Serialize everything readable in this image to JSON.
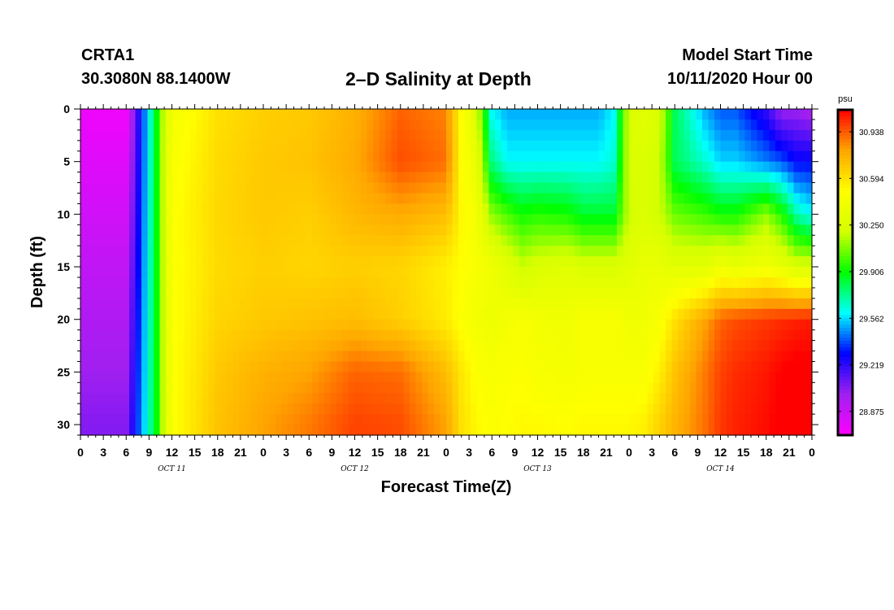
{
  "header": {
    "station": "CRTA1",
    "coords": "30.3080N 88.1400W",
    "title": "2–D Salinity at Depth",
    "model_start_label": "Model Start Time",
    "model_start_value": "10/11/2020 Hour 00"
  },
  "chart_data": {
    "type": "heatmap",
    "title": "2–D Salinity at Depth",
    "xlabel": "Forecast Time(Z)",
    "ylabel": "Depth (ft)",
    "xlim_hours": [
      0,
      96
    ],
    "ylim": [
      0,
      31
    ],
    "y_inverted": true,
    "x_ticks": [
      "0",
      "3",
      "6",
      "9",
      "12",
      "15",
      "18",
      "21",
      "0",
      "3",
      "6",
      "9",
      "12",
      "15",
      "18",
      "21",
      "0",
      "3",
      "6",
      "9",
      "12",
      "15",
      "18",
      "21",
      "0",
      "3",
      "6",
      "9",
      "12",
      "15",
      "18",
      "21",
      "0"
    ],
    "date_labels": [
      {
        "label": "OCT 11",
        "hour": 12
      },
      {
        "label": "OCT 12",
        "hour": 36
      },
      {
        "label": "OCT 13",
        "hour": 60
      },
      {
        "label": "OCT 14",
        "hour": 84
      }
    ],
    "y_ticks": [
      0,
      5,
      10,
      15,
      20,
      25,
      30
    ],
    "colorbar": {
      "unit": "psu",
      "ticks": [
        30.938,
        30.594,
        30.25,
        29.906,
        29.562,
        29.219,
        28.875
      ],
      "range": [
        28.7,
        31.1
      ],
      "colors": [
        "#ff00ff",
        "#a020f0",
        "#0000ff",
        "#00ffff",
        "#00ff00",
        "#d4ff00",
        "#ffff00",
        "#ffa500",
        "#ff0000"
      ]
    },
    "depth_rows": [
      0,
      5,
      10,
      15,
      20,
      25,
      30
    ],
    "time_cols": [
      0,
      6,
      10,
      11,
      12,
      18,
      24,
      30,
      36,
      42,
      48,
      50,
      52,
      54,
      56,
      58,
      60,
      64,
      66,
      68,
      70,
      72,
      74,
      76,
      78,
      82,
      84,
      86,
      90,
      92,
      94,
      96
    ],
    "values": [
      [
        28.75,
        28.75,
        29.9,
        30.22,
        30.42,
        30.6,
        30.66,
        30.68,
        30.76,
        30.92,
        30.86,
        30.5,
        30.25,
        29.6,
        29.5,
        29.5,
        29.5,
        29.5,
        29.5,
        29.5,
        29.6,
        30.25,
        30.3,
        30.25,
        29.8,
        29.5,
        29.4,
        29.4,
        29.2,
        29.0,
        29.0,
        28.95
      ],
      [
        28.8,
        28.8,
        29.9,
        30.24,
        30.46,
        30.62,
        30.68,
        30.7,
        30.78,
        30.96,
        30.9,
        30.5,
        30.35,
        29.75,
        29.6,
        29.6,
        29.6,
        29.6,
        29.6,
        29.6,
        29.65,
        30.25,
        30.25,
        30.2,
        29.8,
        29.65,
        29.55,
        29.55,
        29.45,
        29.4,
        29.3,
        29.3
      ],
      [
        28.85,
        28.85,
        29.9,
        30.24,
        30.48,
        30.63,
        30.68,
        30.66,
        30.74,
        30.78,
        30.72,
        30.52,
        30.42,
        30.1,
        30.0,
        29.92,
        29.95,
        29.92,
        29.85,
        29.85,
        29.85,
        30.2,
        30.25,
        30.2,
        30.05,
        29.98,
        29.92,
        29.92,
        30.1,
        29.95,
        29.7,
        29.6
      ],
      [
        28.9,
        28.9,
        29.9,
        30.24,
        30.48,
        30.62,
        30.66,
        30.64,
        30.66,
        30.64,
        30.55,
        30.5,
        30.45,
        30.4,
        30.3,
        30.2,
        30.25,
        30.3,
        30.25,
        30.25,
        30.25,
        30.3,
        30.35,
        30.35,
        30.3,
        30.3,
        30.4,
        30.35,
        30.4,
        30.35,
        30.25,
        30.25
      ],
      [
        28.95,
        28.95,
        29.9,
        30.24,
        30.48,
        30.64,
        30.68,
        30.7,
        30.72,
        30.66,
        30.56,
        30.48,
        30.42,
        30.38,
        30.42,
        30.45,
        30.42,
        30.4,
        30.45,
        30.45,
        30.45,
        30.4,
        30.4,
        30.45,
        30.6,
        30.8,
        30.92,
        30.96,
        31.0,
        31.02,
        31.04,
        31.05
      ],
      [
        29.0,
        29.0,
        29.9,
        30.24,
        30.48,
        30.68,
        30.76,
        30.8,
        30.92,
        30.9,
        30.72,
        30.58,
        30.48,
        30.45,
        30.48,
        30.48,
        30.45,
        30.42,
        30.45,
        30.45,
        30.45,
        30.45,
        30.45,
        30.55,
        30.7,
        30.88,
        30.98,
        31.02,
        31.06,
        31.1,
        31.12,
        31.12
      ],
      [
        29.05,
        29.05,
        29.9,
        30.24,
        30.48,
        30.7,
        30.8,
        30.88,
        30.98,
        30.96,
        30.8,
        30.6,
        30.52,
        30.48,
        30.5,
        30.52,
        30.52,
        30.5,
        30.52,
        30.52,
        30.52,
        30.52,
        30.55,
        30.65,
        30.75,
        30.9,
        31.0,
        31.04,
        31.08,
        31.12,
        31.14,
        31.14
      ]
    ]
  }
}
